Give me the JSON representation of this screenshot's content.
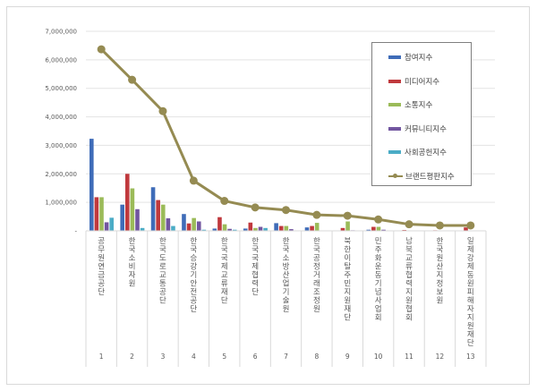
{
  "chart_data": {
    "type": "bar",
    "title": "",
    "xlabel": "",
    "ylabel": "",
    "ylim": [
      0,
      7000000
    ],
    "yticks": [
      "-",
      "1,000,000",
      "2,000,000",
      "3,000,000",
      "4,000,000",
      "5,000,000",
      "6,000,000",
      "7,000,000"
    ],
    "grid": true,
    "legend_position": "upper right",
    "categories": [
      "공무원연금공단",
      "한국소비자원",
      "한국도로교통공단",
      "한국승강기안전공단",
      "한국국제교류재단",
      "한국국제협력단",
      "한국소방산업기술원",
      "한국공정거래조정원",
      "북한이탈주민지원재단",
      "민주화운동기념사업회",
      "남북교류협력지원협회",
      "한국원산지정보원",
      "일제강제동원피해자지원재단"
    ],
    "category_numbers": [
      "1",
      "2",
      "3",
      "4",
      "5",
      "6",
      "7",
      "8",
      "9",
      "10",
      "11",
      "12",
      "13"
    ],
    "series": [
      {
        "name": "참여지수",
        "type": "bar",
        "color": "#3f6cb8",
        "values": [
          3230000,
          920000,
          1530000,
          590000,
          80000,
          80000,
          270000,
          120000,
          10000,
          40000,
          10000,
          10000,
          10000
        ]
      },
      {
        "name": "미디어지수",
        "type": "bar",
        "color": "#c0393d",
        "values": [
          1180000,
          2000000,
          1080000,
          260000,
          480000,
          290000,
          170000,
          170000,
          100000,
          140000,
          30000,
          20000,
          120000
        ]
      },
      {
        "name": "소통지수",
        "type": "bar",
        "color": "#9bbb59",
        "values": [
          1180000,
          1490000,
          920000,
          450000,
          230000,
          100000,
          170000,
          280000,
          330000,
          140000,
          10000,
          10000,
          10000
        ]
      },
      {
        "name": "커뮤니티지수",
        "type": "bar",
        "color": "#7256a0",
        "values": [
          300000,
          760000,
          440000,
          330000,
          70000,
          140000,
          60000,
          10000,
          20000,
          40000,
          10000,
          10000,
          10000
        ]
      },
      {
        "name": "사회공헌지수",
        "type": "bar",
        "color": "#4bacc6",
        "values": [
          460000,
          100000,
          170000,
          40000,
          40000,
          100000,
          10000,
          10000,
          10000,
          10000,
          10000,
          10000,
          10000
        ]
      },
      {
        "name": "브랜드평판지수",
        "type": "line",
        "color": "#958b52",
        "values": [
          6370000,
          5300000,
          4200000,
          1760000,
          1050000,
          820000,
          730000,
          560000,
          530000,
          400000,
          230000,
          190000,
          190000
        ]
      }
    ]
  }
}
